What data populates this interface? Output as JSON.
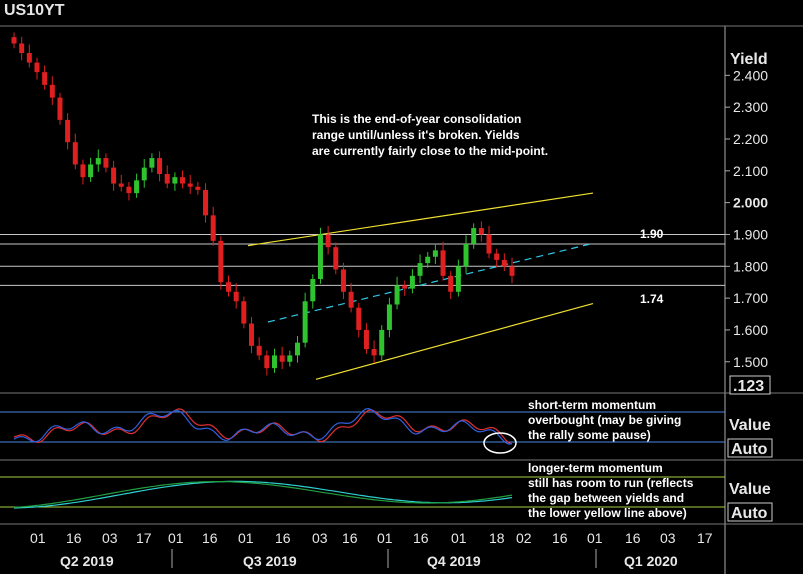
{
  "window": {
    "title": "US10YT"
  },
  "price_axis": {
    "label": "Yield",
    "last_value_box": ".123"
  },
  "panels": {
    "short": {
      "axis_label": "Value",
      "axis_button": "Auto"
    },
    "long": {
      "axis_label": "Value",
      "axis_button": "Auto"
    }
  },
  "annotations": {
    "main_note": [
      "This is the end-of-year consolidation",
      "range until/unless it's broken.  Yields",
      "are currently fairly close to the mid-point."
    ],
    "level_high": "1.90",
    "level_low": "1.74",
    "short_note": [
      "short-term momentum",
      "overbought (may be giving",
      "the rally some pause)"
    ],
    "long_note": [
      "longer-term momentum",
      "still has room to run (reflects",
      "the gap between yields and",
      "the lower yellow line above)"
    ]
  },
  "colors": {
    "up": "#2fc42f",
    "down": "#e02020",
    "channel": "#f0e030",
    "midline": "#30c8e8",
    "level": "#c8c8c8",
    "short_a": "#e03030",
    "short_b": "#3060e0",
    "long_a": "#30d0d0",
    "long_b": "#20a040",
    "band": "#4a8ae0"
  },
  "chart_data": {
    "type": "candlestick",
    "series_name": "US10YT",
    "ylabel": "Yield",
    "ylim": [
      1.405,
      2.555
    ],
    "y_ticks": [
      "2.400",
      "2.300",
      "2.200",
      "2.100",
      "2.000",
      "1.900",
      "1.800",
      "1.700",
      "1.600",
      "1.500"
    ],
    "x_day_ticks": [
      "01",
      "16",
      "03",
      "17",
      "01",
      "16",
      "01",
      "16",
      "03",
      "16",
      "01",
      "16",
      "01",
      "18",
      "02",
      "16",
      "01",
      "16",
      "03",
      "17"
    ],
    "x_period_labels": [
      "Q2 2019",
      "Q3 2019",
      "Q4 2019",
      "Q1 2020"
    ],
    "closes": [
      2.5,
      2.47,
      2.44,
      2.41,
      2.37,
      2.33,
      2.26,
      2.19,
      2.12,
      2.08,
      2.12,
      2.14,
      2.11,
      2.06,
      2.05,
      2.03,
      2.07,
      2.11,
      2.14,
      2.09,
      2.06,
      2.08,
      2.06,
      2.05,
      2.04,
      1.96,
      1.88,
      1.75,
      1.72,
      1.69,
      1.62,
      1.55,
      1.52,
      1.48,
      1.52,
      1.5,
      1.52,
      1.56,
      1.69,
      1.76,
      1.9,
      1.86,
      1.79,
      1.72,
      1.67,
      1.6,
      1.54,
      1.52,
      1.6,
      1.68,
      1.74,
      1.73,
      1.77,
      1.81,
      1.83,
      1.85,
      1.77,
      1.72,
      1.8,
      1.87,
      1.92,
      1.9,
      1.84,
      1.82,
      1.8,
      1.77
    ],
    "channel_upper": {
      "from": [
        1.86,
        1.91
      ],
      "to": [
        2.03
      ]
    },
    "channel_lower": {
      "start": 1.44,
      "end": 1.68
    },
    "midline": {
      "start": 1.62,
      "end": 1.87
    },
    "levels": [
      1.9,
      1.87,
      1.8,
      1.74
    ]
  }
}
